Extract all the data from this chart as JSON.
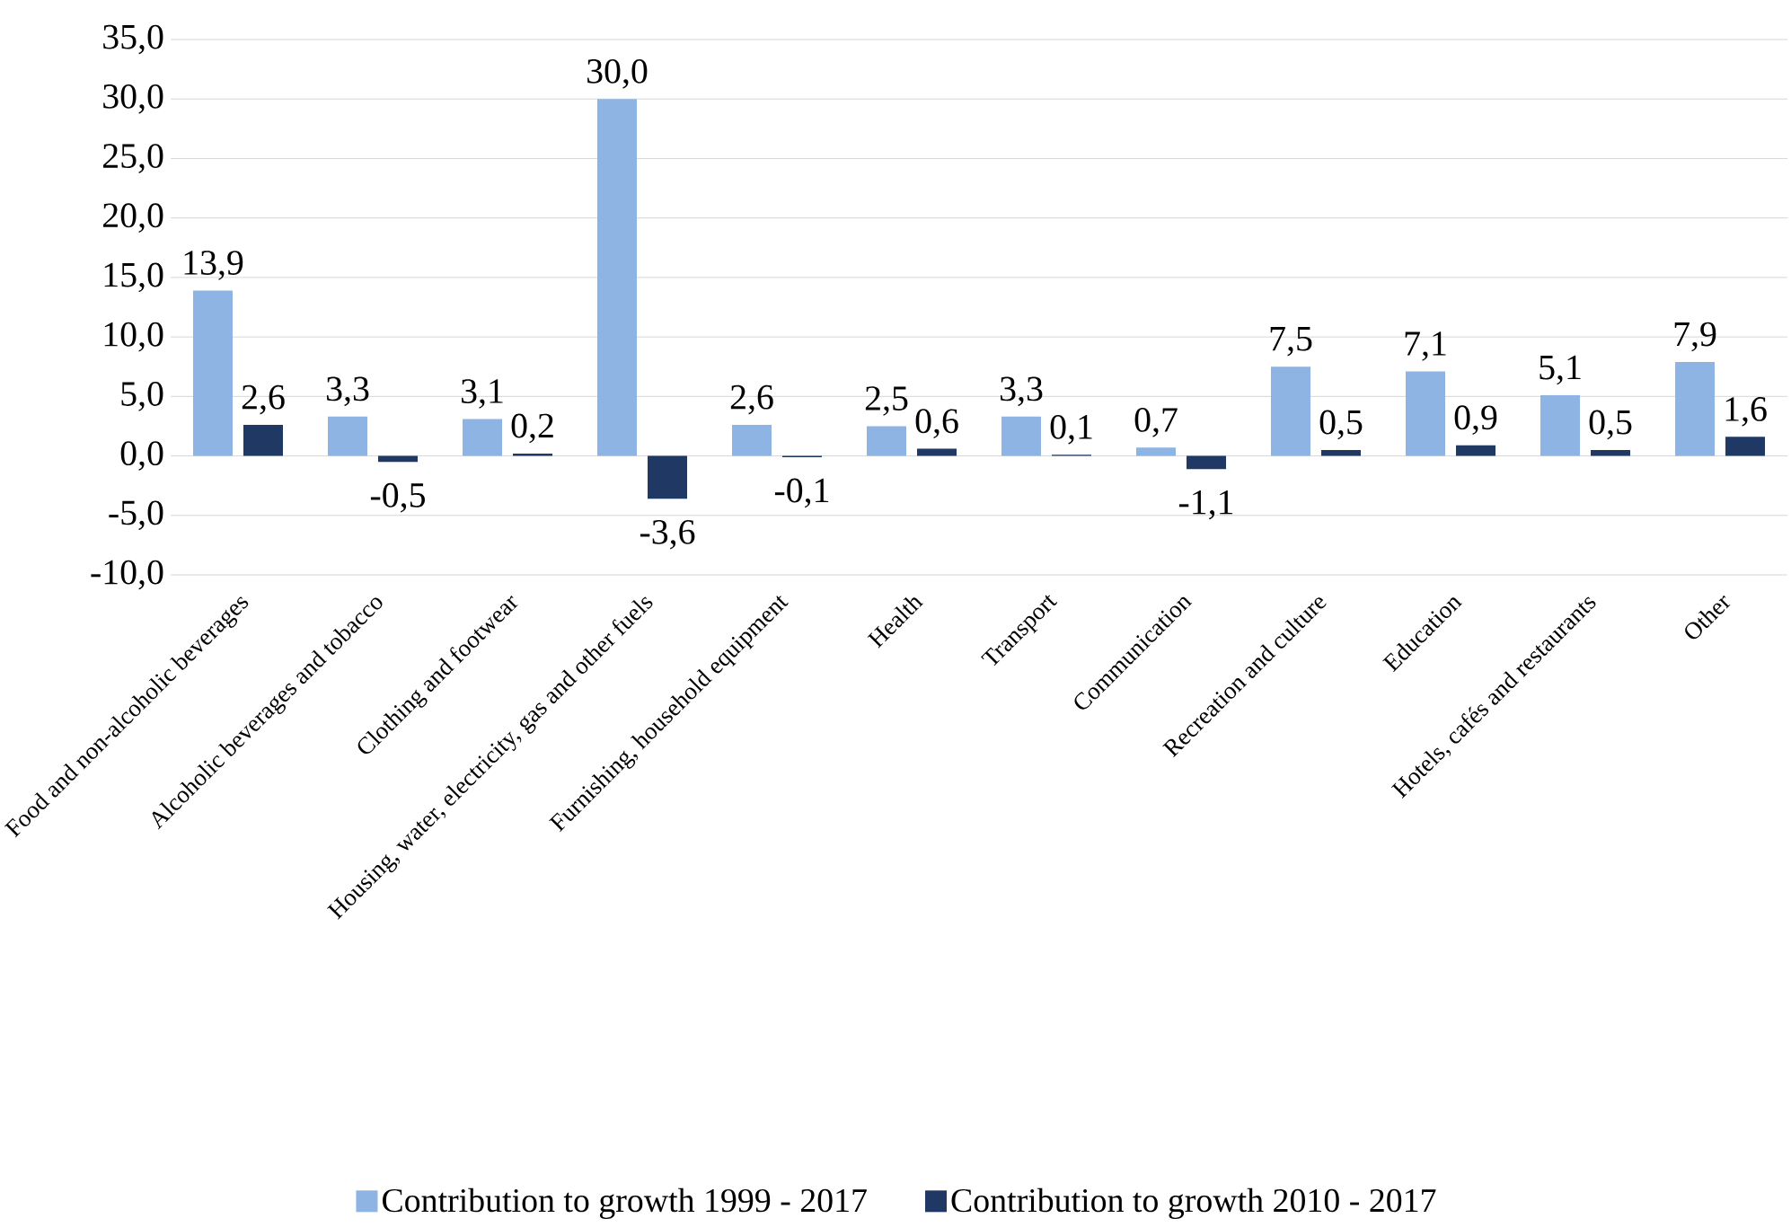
{
  "chart_data": {
    "type": "bar",
    "categories": [
      "Food and non-alcoholic beverages",
      "Alcoholic beverages and tobacco",
      "Clothing and footwear",
      "Housing, water, electricity, gas and other fuels",
      "Furnishing, household equipment",
      "Health",
      "Transport",
      "Communication",
      "Recreation and culture",
      "Education",
      "Hotels, cafés and restaurants",
      "Other"
    ],
    "series": [
      {
        "name": "Contribution to growth 1999 - 2017",
        "color": "#8db4e2",
        "values": [
          13.9,
          3.3,
          3.1,
          30.0,
          2.6,
          2.5,
          3.3,
          0.7,
          7.5,
          7.1,
          5.1,
          7.9
        ],
        "value_labels": [
          "13,9",
          "3,3",
          "3,1",
          "30,0",
          "2,6",
          "2,5",
          "3,3",
          "0,7",
          "7,5",
          "7,1",
          "5,1",
          "7,9"
        ]
      },
      {
        "name": "Contribution to growth 2010 - 2017",
        "color": "#1f3864",
        "values": [
          2.6,
          -0.5,
          0.2,
          -3.6,
          -0.1,
          0.6,
          0.1,
          -1.1,
          0.5,
          0.9,
          0.5,
          1.6
        ],
        "value_labels": [
          "2,6",
          "-0,5",
          "0,2",
          "-3,6",
          "-0,1",
          "0,6",
          "0,1",
          "-1,1",
          "0,5",
          "0,9",
          "0,5",
          "1,6"
        ]
      }
    ],
    "ylim": [
      -10,
      35
    ],
    "yticks": [
      {
        "value": -10,
        "label": "-10,0"
      },
      {
        "value": -5,
        "label": "-5,0"
      },
      {
        "value": 0,
        "label": "0,0"
      },
      {
        "value": 5,
        "label": "5,0"
      },
      {
        "value": 10,
        "label": "10,0"
      },
      {
        "value": 15,
        "label": "15,0"
      },
      {
        "value": 20,
        "label": "20,0"
      },
      {
        "value": 25,
        "label": "25,0"
      },
      {
        "value": 30,
        "label": "30,0"
      },
      {
        "value": 35,
        "label": "35,0"
      }
    ],
    "grid": "y",
    "legend": "bottom"
  }
}
